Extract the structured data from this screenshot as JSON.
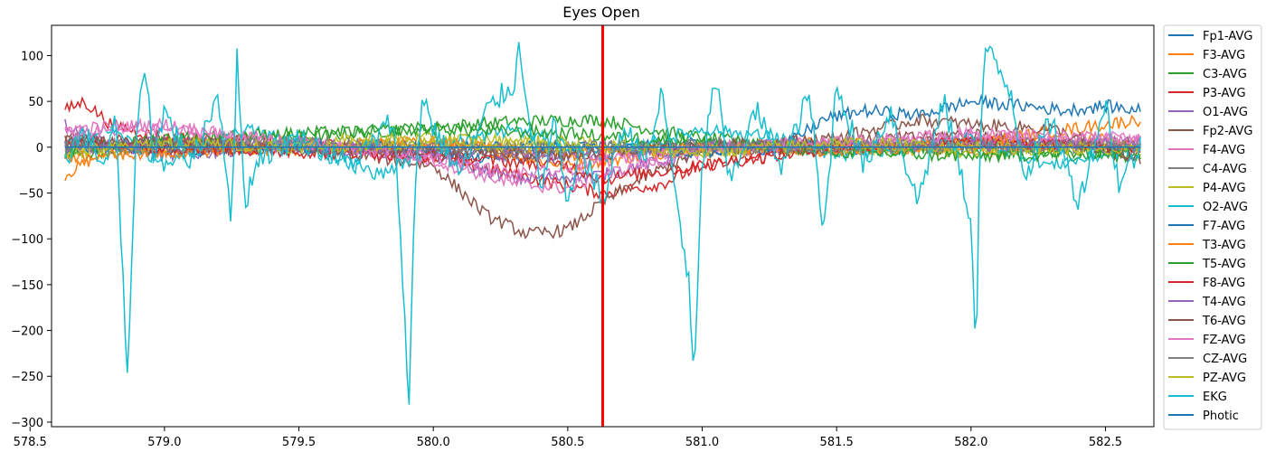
{
  "chart_data": {
    "type": "line",
    "title": "Eyes Open",
    "xlabel": "",
    "ylabel": "",
    "xlim": [
      578.58,
      582.68
    ],
    "ylim": [
      -305,
      133
    ],
    "x_range": [
      578.63,
      582.63
    ],
    "xticks": [
      578.5,
      579.0,
      579.5,
      580.0,
      580.5,
      581.0,
      581.5,
      582.0,
      582.5
    ],
    "xtick_labels": [
      "578.5",
      "579.0",
      "579.5",
      "580.0",
      "580.5",
      "581.0",
      "581.5",
      "582.0",
      "582.5"
    ],
    "yticks": [
      100,
      50,
      0,
      -50,
      -100,
      -150,
      -200,
      -250,
      -300
    ],
    "ytick_labels": [
      "100",
      "50",
      "0",
      "−50",
      "−100",
      "−150",
      "−200",
      "−250",
      "−300"
    ],
    "marker": {
      "x": 580.63,
      "color": "#ff0000"
    },
    "legend_position": "outside-right",
    "grid": false,
    "series": [
      {
        "name": "Fp1-AVG",
        "color": "#1f77b4",
        "points": [
          [
            578.63,
            5
          ],
          [
            579.0,
            -5
          ],
          [
            579.5,
            2
          ],
          [
            580.0,
            -8
          ],
          [
            580.3,
            -12
          ],
          [
            580.63,
            0
          ],
          [
            581.0,
            4
          ],
          [
            581.5,
            -3
          ],
          [
            582.0,
            2
          ],
          [
            582.63,
            0
          ]
        ]
      },
      {
        "name": "F3-AVG",
        "color": "#ff7f0e",
        "points": [
          [
            578.63,
            -30
          ],
          [
            578.75,
            -10
          ],
          [
            579.0,
            5
          ],
          [
            579.5,
            -5
          ],
          [
            580.0,
            8
          ],
          [
            580.5,
            -20
          ],
          [
            580.63,
            -15
          ],
          [
            581.0,
            0
          ],
          [
            581.5,
            5
          ],
          [
            582.0,
            -5
          ],
          [
            582.5,
            10
          ],
          [
            582.63,
            0
          ]
        ]
      },
      {
        "name": "C3-AVG",
        "color": "#2ca02c",
        "points": [
          [
            578.63,
            -10
          ],
          [
            579.0,
            5
          ],
          [
            579.5,
            10
          ],
          [
            580.0,
            22
          ],
          [
            580.3,
            28
          ],
          [
            580.63,
            30
          ],
          [
            580.8,
            20
          ],
          [
            581.0,
            10
          ],
          [
            581.5,
            0
          ],
          [
            582.0,
            -5
          ],
          [
            582.63,
            -10
          ]
        ]
      },
      {
        "name": "P3-AVG",
        "color": "#d62728",
        "points": [
          [
            578.63,
            40
          ],
          [
            578.7,
            50
          ],
          [
            578.8,
            25
          ],
          [
            579.0,
            10
          ],
          [
            579.5,
            5
          ],
          [
            580.0,
            -10
          ],
          [
            580.3,
            -30
          ],
          [
            580.63,
            -50
          ],
          [
            580.85,
            -40
          ],
          [
            581.0,
            -20
          ],
          [
            581.5,
            0
          ],
          [
            582.0,
            5
          ],
          [
            582.63,
            0
          ]
        ]
      },
      {
        "name": "O1-AVG",
        "color": "#9467bd",
        "points": [
          [
            578.63,
            25
          ],
          [
            578.8,
            5
          ],
          [
            579.0,
            -10
          ],
          [
            579.2,
            -5
          ],
          [
            579.5,
            5
          ],
          [
            580.0,
            -10
          ],
          [
            580.3,
            -35
          ],
          [
            580.63,
            -30
          ],
          [
            581.0,
            -5
          ],
          [
            581.5,
            0
          ],
          [
            582.0,
            5
          ],
          [
            582.63,
            5
          ]
        ]
      },
      {
        "name": "Fp2-AVG",
        "color": "#8c564b",
        "points": [
          [
            578.63,
            10
          ],
          [
            579.0,
            -5
          ],
          [
            579.5,
            0
          ],
          [
            580.0,
            -20
          ],
          [
            580.2,
            -75
          ],
          [
            580.35,
            -95
          ],
          [
            580.5,
            -90
          ],
          [
            580.63,
            -60
          ],
          [
            580.8,
            -30
          ],
          [
            581.0,
            -5
          ],
          [
            581.5,
            5
          ],
          [
            582.0,
            15
          ],
          [
            582.63,
            -10
          ]
        ]
      },
      {
        "name": "F4-AVG",
        "color": "#e377c2",
        "points": [
          [
            578.63,
            20
          ],
          [
            579.0,
            25
          ],
          [
            579.3,
            10
          ],
          [
            579.5,
            5
          ],
          [
            580.0,
            -15
          ],
          [
            580.3,
            -40
          ],
          [
            580.5,
            -45
          ],
          [
            580.63,
            -30
          ],
          [
            581.0,
            -5
          ],
          [
            581.5,
            5
          ],
          [
            582.0,
            10
          ],
          [
            582.63,
            10
          ]
        ]
      },
      {
        "name": "C4-AVG",
        "color": "#7f7f7f",
        "points": [
          [
            578.63,
            0
          ],
          [
            579.0,
            5
          ],
          [
            579.5,
            -5
          ],
          [
            580.0,
            0
          ],
          [
            580.5,
            -5
          ],
          [
            581.0,
            5
          ],
          [
            581.5,
            0
          ],
          [
            582.0,
            5
          ],
          [
            582.63,
            0
          ]
        ]
      },
      {
        "name": "P4-AVG",
        "color": "#bcbd22",
        "points": [
          [
            578.63,
            -5
          ],
          [
            579.0,
            0
          ],
          [
            579.5,
            5
          ],
          [
            580.0,
            10
          ],
          [
            580.5,
            5
          ],
          [
            581.0,
            -5
          ],
          [
            581.5,
            0
          ],
          [
            582.0,
            -5
          ],
          [
            582.63,
            5
          ]
        ]
      },
      {
        "name": "O2-AVG",
        "color": "#17becf",
        "points": [
          [
            578.63,
            0
          ],
          [
            578.8,
            20
          ],
          [
            579.0,
            -20
          ],
          [
            579.3,
            20
          ],
          [
            579.5,
            5
          ],
          [
            579.8,
            -30
          ],
          [
            580.0,
            0
          ],
          [
            580.3,
            20
          ],
          [
            580.63,
            -10
          ],
          [
            581.0,
            20
          ],
          [
            581.3,
            10
          ],
          [
            581.5,
            -10
          ],
          [
            582.0,
            10
          ],
          [
            582.3,
            -20
          ],
          [
            582.63,
            0
          ]
        ]
      },
      {
        "name": "F7-AVG",
        "color": "#1f77b4",
        "points": [
          [
            578.63,
            0
          ],
          [
            579.0,
            0
          ],
          [
            579.5,
            0
          ],
          [
            580.0,
            0
          ],
          [
            580.5,
            0
          ],
          [
            581.0,
            -5
          ],
          [
            581.3,
            0
          ],
          [
            581.45,
            30
          ],
          [
            581.6,
            40
          ],
          [
            581.8,
            35
          ],
          [
            582.0,
            50
          ],
          [
            582.2,
            45
          ],
          [
            582.35,
            40
          ],
          [
            582.5,
            45
          ],
          [
            582.63,
            40
          ]
        ]
      },
      {
        "name": "T3-AVG",
        "color": "#ff7f0e",
        "points": [
          [
            578.63,
            -10
          ],
          [
            579.0,
            -5
          ],
          [
            579.5,
            0
          ],
          [
            580.0,
            5
          ],
          [
            580.5,
            -10
          ],
          [
            581.0,
            0
          ],
          [
            581.5,
            -5
          ],
          [
            582.0,
            5
          ],
          [
            582.63,
            30
          ]
        ]
      },
      {
        "name": "T5-AVG",
        "color": "#2ca02c",
        "points": [
          [
            578.63,
            -5
          ],
          [
            579.0,
            10
          ],
          [
            579.5,
            15
          ],
          [
            580.0,
            20
          ],
          [
            580.5,
            15
          ],
          [
            581.0,
            5
          ],
          [
            581.5,
            -5
          ],
          [
            582.0,
            -10
          ],
          [
            582.63,
            -5
          ]
        ]
      },
      {
        "name": "F8-AVG",
        "color": "#d62728",
        "points": [
          [
            578.63,
            5
          ],
          [
            579.0,
            0
          ],
          [
            579.5,
            -5
          ],
          [
            580.0,
            -10
          ],
          [
            580.5,
            -20
          ],
          [
            580.63,
            -35
          ],
          [
            581.0,
            -20
          ],
          [
            581.5,
            0
          ],
          [
            582.0,
            5
          ],
          [
            582.63,
            0
          ]
        ]
      },
      {
        "name": "T4-AVG",
        "color": "#9467bd",
        "points": [
          [
            578.63,
            0
          ],
          [
            579.0,
            5
          ],
          [
            579.5,
            0
          ],
          [
            580.0,
            -5
          ],
          [
            580.5,
            -10
          ],
          [
            581.0,
            0
          ],
          [
            581.5,
            5
          ],
          [
            582.0,
            0
          ],
          [
            582.63,
            5
          ]
        ]
      },
      {
        "name": "T6-AVG",
        "color": "#8c564b",
        "points": [
          [
            578.63,
            10
          ],
          [
            579.0,
            5
          ],
          [
            579.5,
            0
          ],
          [
            580.0,
            -5
          ],
          [
            580.5,
            -10
          ],
          [
            581.0,
            0
          ],
          [
            581.5,
            10
          ],
          [
            581.8,
            30
          ],
          [
            582.0,
            25
          ],
          [
            582.3,
            20
          ],
          [
            582.63,
            -15
          ]
        ]
      },
      {
        "name": "FZ-AVG",
        "color": "#e377c2",
        "points": [
          [
            578.63,
            15
          ],
          [
            579.0,
            20
          ],
          [
            579.5,
            5
          ],
          [
            580.0,
            -10
          ],
          [
            580.3,
            -30
          ],
          [
            580.5,
            -25
          ],
          [
            580.63,
            -15
          ],
          [
            581.0,
            0
          ],
          [
            581.5,
            5
          ],
          [
            582.0,
            15
          ],
          [
            582.63,
            10
          ]
        ]
      },
      {
        "name": "CZ-AVG",
        "color": "#7f7f7f",
        "points": [
          [
            578.63,
            0
          ],
          [
            579.0,
            0
          ],
          [
            579.5,
            5
          ],
          [
            580.0,
            0
          ],
          [
            580.5,
            0
          ],
          [
            581.0,
            0
          ],
          [
            581.5,
            0
          ],
          [
            582.0,
            0
          ],
          [
            582.63,
            0
          ]
        ]
      },
      {
        "name": "PZ-AVG",
        "color": "#bcbd22",
        "points": [
          [
            578.63,
            -5
          ],
          [
            579.0,
            5
          ],
          [
            579.5,
            0
          ],
          [
            580.0,
            5
          ],
          [
            580.5,
            0
          ],
          [
            581.0,
            -5
          ],
          [
            581.5,
            5
          ],
          [
            582.0,
            0
          ],
          [
            582.63,
            -5
          ]
        ]
      },
      {
        "name": "EKG",
        "color": "#17becf",
        "points": [
          [
            578.63,
            -10
          ],
          [
            578.7,
            15
          ],
          [
            578.78,
            -20
          ],
          [
            578.82,
            30
          ],
          [
            578.85,
            -180
          ],
          [
            578.86,
            -272
          ],
          [
            578.88,
            -100
          ],
          [
            578.9,
            40
          ],
          [
            578.93,
            85
          ],
          [
            578.96,
            -10
          ],
          [
            579.0,
            40
          ],
          [
            579.1,
            -20
          ],
          [
            579.2,
            60
          ],
          [
            579.25,
            -80
          ],
          [
            579.27,
            95
          ],
          [
            579.3,
            -60
          ],
          [
            579.35,
            -10
          ],
          [
            579.5,
            10
          ],
          [
            579.7,
            -20
          ],
          [
            579.85,
            30
          ],
          [
            579.88,
            -100
          ],
          [
            579.91,
            -290
          ],
          [
            579.93,
            -50
          ],
          [
            579.96,
            60
          ],
          [
            580.0,
            20
          ],
          [
            580.1,
            -30
          ],
          [
            580.2,
            40
          ],
          [
            580.3,
            70
          ],
          [
            580.32,
            110
          ],
          [
            580.35,
            50
          ],
          [
            580.4,
            -50
          ],
          [
            580.45,
            30
          ],
          [
            580.5,
            -70
          ],
          [
            580.55,
            0
          ],
          [
            580.63,
            -60
          ],
          [
            580.7,
            20
          ],
          [
            580.8,
            -10
          ],
          [
            580.85,
            60
          ],
          [
            580.95,
            -150
          ],
          [
            580.97,
            -260
          ],
          [
            581.0,
            -20
          ],
          [
            581.05,
            80
          ],
          [
            581.1,
            -40
          ],
          [
            581.2,
            40
          ],
          [
            581.3,
            -20
          ],
          [
            581.4,
            60
          ],
          [
            581.45,
            -100
          ],
          [
            581.5,
            70
          ],
          [
            581.6,
            -20
          ],
          [
            581.7,
            40
          ],
          [
            581.8,
            -60
          ],
          [
            581.9,
            50
          ],
          [
            582.0,
            -80
          ],
          [
            582.02,
            -230
          ],
          [
            582.03,
            -40
          ],
          [
            582.05,
            110
          ],
          [
            582.15,
            60
          ],
          [
            582.2,
            -30
          ],
          [
            582.3,
            30
          ],
          [
            582.4,
            -60
          ],
          [
            582.5,
            50
          ],
          [
            582.55,
            -40
          ],
          [
            582.63,
            0
          ]
        ]
      },
      {
        "name": "Photic",
        "color": "#1f77b4",
        "points": [
          [
            578.63,
            0
          ],
          [
            582.63,
            0
          ]
        ]
      }
    ]
  }
}
